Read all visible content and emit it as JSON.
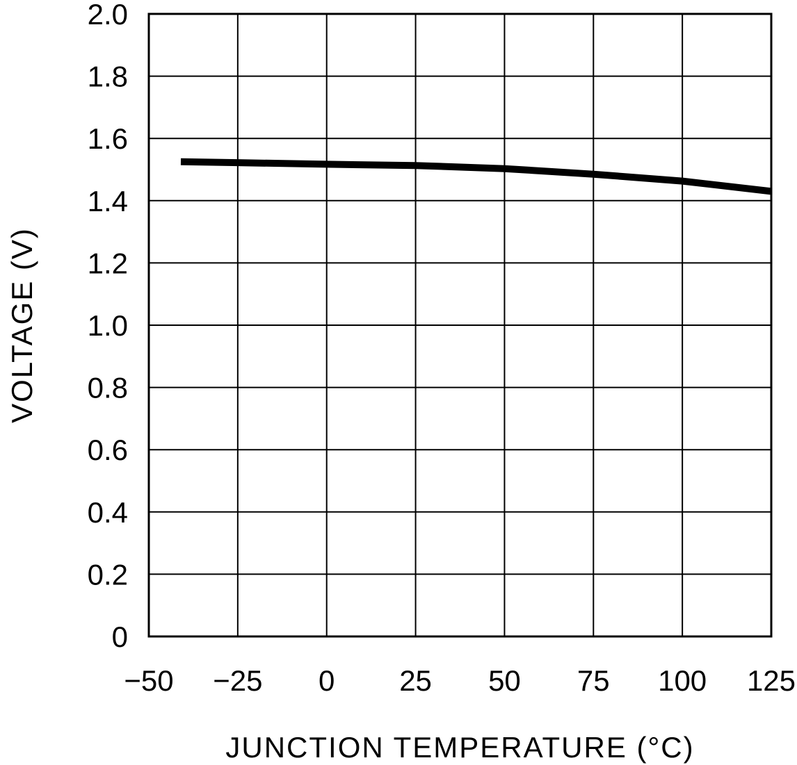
{
  "chart_data": {
    "type": "line",
    "title": "",
    "xlabel": "JUNCTION TEMPERATURE (°C)",
    "ylabel": "VOLTAGE (V)",
    "xlim": [
      -50,
      125
    ],
    "ylim": [
      0,
      2.0
    ],
    "x_ticks": [
      -50,
      -25,
      0,
      25,
      50,
      75,
      100,
      125
    ],
    "x_tick_labels": [
      "−50",
      "−25",
      "0",
      "25",
      "50",
      "75",
      "100",
      "125"
    ],
    "y_ticks": [
      0,
      0.2,
      0.4,
      0.6,
      0.8,
      1.0,
      1.2,
      1.4,
      1.6,
      1.8,
      2.0
    ],
    "y_tick_labels": [
      "0",
      "0.2",
      "0.4",
      "0.6",
      "0.8",
      "1.0",
      "1.2",
      "1.4",
      "1.6",
      "1.8",
      "2.0"
    ],
    "grid": true,
    "series": [
      {
        "x": [
          -41,
          -25,
          0,
          25,
          50,
          75,
          100,
          125
        ],
        "y": [
          1.525,
          1.522,
          1.517,
          1.513,
          1.503,
          1.485,
          1.463,
          1.43
        ]
      }
    ],
    "colors": {
      "line": "#000000",
      "grid": "#000000",
      "background": "#ffffff"
    }
  }
}
